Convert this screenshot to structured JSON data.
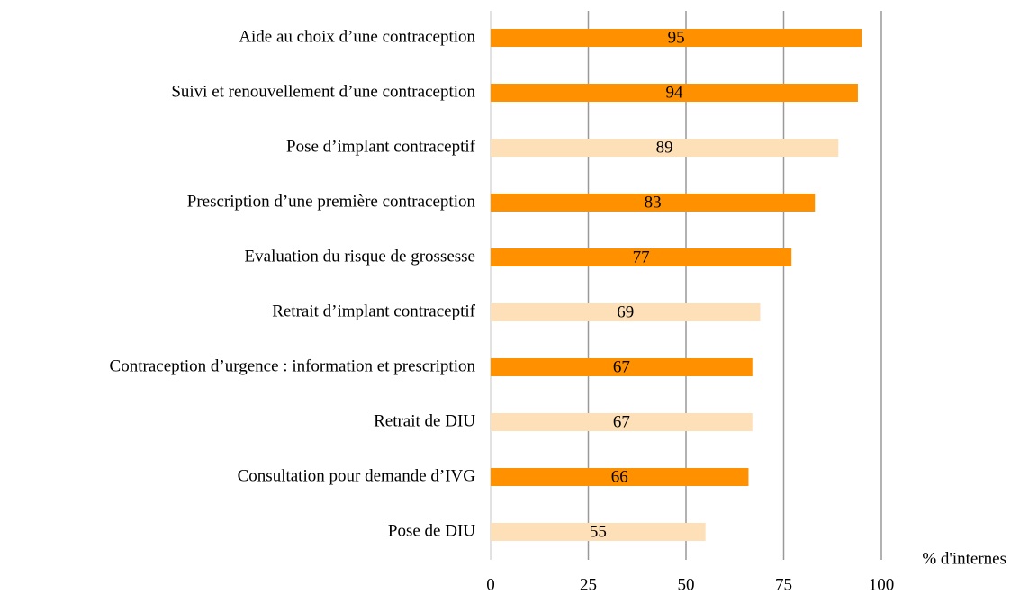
{
  "chart_data": {
    "type": "bar",
    "orientation": "horizontal",
    "x_label": "% d'internes",
    "categories": [
      "Aide au choix d’une contraception",
      "Suivi et renouvellement d’une contraception",
      "Pose d’implant contraceptif",
      "Prescription d’une première contraception",
      "Evaluation du risque de grossesse",
      "Retrait d’implant contraceptif",
      "Contraception d’urgence : information et prescription",
      "Retrait de DIU",
      "Consultation pour demande d’IVG",
      "Pose de DIU"
    ],
    "values": [
      95,
      94,
      89,
      83,
      77,
      69,
      67,
      67,
      66,
      55
    ],
    "colors": [
      "#ff9100",
      "#ff9100",
      "#fde0b8",
      "#ff9100",
      "#ff9100",
      "#fde0b8",
      "#ff9100",
      "#fde0b8",
      "#ff9100",
      "#fde0b8"
    ],
    "xlim": [
      0,
      100
    ],
    "xticks": [
      0,
      25,
      50,
      75,
      100
    ],
    "grid": true
  }
}
